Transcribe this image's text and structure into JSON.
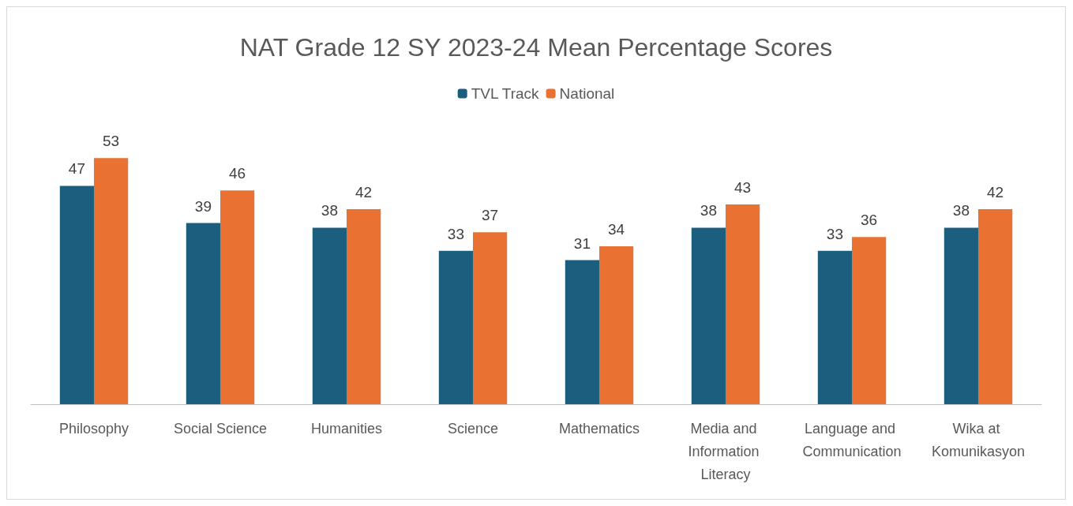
{
  "chart_data": {
    "type": "bar",
    "title": "NAT Grade 12 SY 2023-24 Mean Percentage Scores",
    "categories": [
      "Philosophy",
      "Social Science",
      "Humanities",
      "Science",
      "Mathematics",
      "Media and Information Literacy",
      "Language and Communication",
      "Wika at Komunikasyon"
    ],
    "series": [
      {
        "name": "TVL Track",
        "color": "#1b5e7e",
        "values": [
          47,
          39,
          38,
          33,
          31,
          38,
          33,
          38
        ]
      },
      {
        "name": "National",
        "color": "#e97132",
        "values": [
          53,
          46,
          42,
          37,
          34,
          43,
          36,
          42
        ]
      }
    ],
    "data_labels": true,
    "legend": "top",
    "grid": false,
    "tick_labels": "x"
  }
}
